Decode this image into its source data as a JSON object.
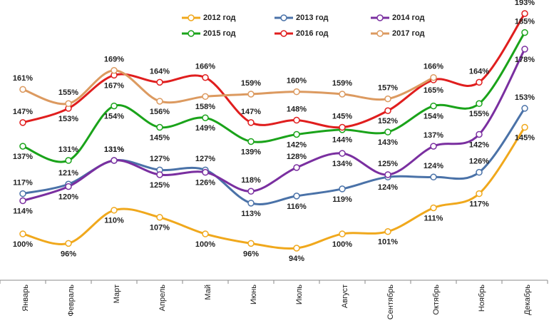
{
  "chart_data": {
    "type": "line",
    "categories": [
      "Январь",
      "Февраль",
      "Март",
      "Апрель",
      "Май",
      "Июнь",
      "Июль",
      "Август",
      "Сентябрь",
      "Октябрь",
      "Ноябрь",
      "Декабрь"
    ],
    "series": [
      {
        "name": "2012 год",
        "color": "#f0a81c",
        "values": [
          100,
          96,
          110,
          107,
          100,
          96,
          94,
          100,
          101,
          111,
          117,
          145
        ],
        "value_labels": [
          "100%",
          "96%",
          "110%",
          "107%",
          "100%",
          "96%",
          "94%",
          "100%",
          "101%",
          "111%",
          "117%",
          "145%"
        ]
      },
      {
        "name": "2013 год",
        "color": "#4a72a8",
        "values": [
          117,
          121,
          131,
          127,
          127,
          113,
          116,
          119,
          124,
          124,
          126,
          153
        ],
        "value_labels": [
          "117%",
          "121%",
          "131%",
          "127%",
          "127%",
          "113%",
          "116%",
          "119%",
          "124%",
          "124%",
          "126%",
          "153%"
        ]
      },
      {
        "name": "2014 год",
        "color": "#7a2fa0",
        "values": [
          114,
          120,
          131,
          125,
          126,
          118,
          128,
          134,
          125,
          137,
          142,
          178
        ],
        "value_labels": [
          "114%",
          "120%",
          "131%",
          "125%",
          "126%",
          "118%",
          "128%",
          "134%",
          "125%",
          "137%",
          "142%",
          "178%"
        ]
      },
      {
        "name": "2015 год",
        "color": "#1aa31a",
        "values": [
          137,
          131,
          154,
          145,
          149,
          139,
          142,
          144,
          143,
          154,
          155,
          185
        ],
        "value_labels": [
          "137%",
          "131%",
          "154%",
          "145%",
          "149%",
          "139%",
          "142%",
          "144%",
          "143%",
          "154%",
          "155%",
          "185%"
        ]
      },
      {
        "name": "2016 год",
        "color": "#e01e1e",
        "values": [
          147,
          153,
          167,
          164,
          166,
          147,
          148,
          145,
          152,
          165,
          164,
          193
        ],
        "value_labels": [
          "147%",
          "153%",
          "167%",
          "164%",
          "166%",
          "147%",
          "148%",
          "145%",
          "152%",
          "165%",
          "164%",
          "193%"
        ]
      },
      {
        "name": "2017 год",
        "color": "#dc9a60",
        "values": [
          161,
          155,
          169,
          156,
          158,
          159,
          160,
          159,
          157,
          166,
          null,
          null
        ],
        "value_labels": [
          "161%",
          "155%",
          "169%",
          "156%",
          "158%",
          "159%",
          "160%",
          "159%",
          "157%",
          "166%",
          null,
          null
        ]
      }
    ]
  }
}
